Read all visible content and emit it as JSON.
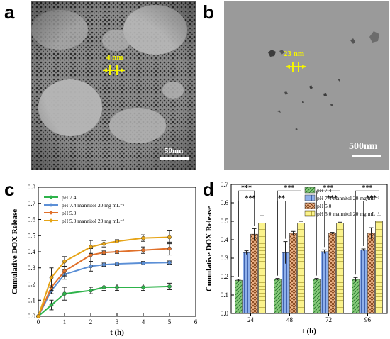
{
  "panels": {
    "a": {
      "letter": "a",
      "measure_label": "4 nm",
      "scale_bar_label": "50nm"
    },
    "b": {
      "letter": "b",
      "measure_label": "23 nm",
      "scale_bar_label": "500nm"
    },
    "c": {
      "letter": "c"
    },
    "d": {
      "letter": "d"
    }
  },
  "colors": {
    "ph74": "#2db34a",
    "ph74_mannitol": "#5b8fd6",
    "ph50": "#e0702a",
    "ph50_mannitol": "#e6a417",
    "bar_ph74": "#86c97a",
    "bar_ph74_mannitol": "#8fb0ea",
    "bar_ph50": "#f2b98f",
    "bar_ph50_mannitol": "#fbf38c",
    "annotation": "#f5f500"
  },
  "chart_data": [
    {
      "panel": "c",
      "type": "line",
      "xlabel": "t (h)",
      "ylabel": "Cumulative DOX Release",
      "xlim": [
        0,
        6
      ],
      "ylim": [
        0,
        0.8
      ],
      "xticks": [
        0,
        1,
        2,
        3,
        4,
        5,
        6
      ],
      "yticks": [
        0.0,
        0.1,
        0.2,
        0.3,
        0.4,
        0.5,
        0.6,
        0.7,
        0.8
      ],
      "x": [
        0,
        0.5,
        1,
        2,
        2.5,
        3,
        4,
        5
      ],
      "legend_position": "top-left",
      "series": [
        {
          "name": "pH 7.4",
          "color_key": "ph74",
          "values": [
            0,
            0.07,
            0.14,
            0.16,
            0.18,
            0.18,
            0.18,
            0.185
          ],
          "errors": [
            0,
            0.03,
            0.04,
            0.02,
            0.02,
            0.02,
            0.02,
            0.02
          ]
        },
        {
          "name": "pH 7.4 mannitol 20 mg mL⁻¹",
          "color_key": "ph74_mannitol",
          "values": [
            0,
            0.16,
            0.26,
            0.31,
            0.32,
            0.325,
            0.33,
            0.333
          ],
          "errors": [
            0,
            0.02,
            0.03,
            0.03,
            0.01,
            0.01,
            0.01,
            0.01
          ]
        },
        {
          "name": "pH 5.0",
          "color_key": "ph50",
          "values": [
            0,
            0.18,
            0.28,
            0.38,
            0.395,
            0.4,
            0.41,
            0.42
          ],
          "errors": [
            0,
            0.02,
            0.03,
            0.04,
            0.01,
            0.01,
            0.02,
            0.04
          ]
        },
        {
          "name": "pH 5.0 mannitol 20 mg mL⁻¹",
          "color_key": "ph50_mannitol",
          "values": [
            0,
            0.24,
            0.34,
            0.43,
            0.45,
            0.465,
            0.485,
            0.49
          ],
          "errors": [
            0,
            0.06,
            0.03,
            0.04,
            0.02,
            0.01,
            0.02,
            0.04
          ]
        }
      ]
    },
    {
      "panel": "d",
      "type": "bar",
      "xlabel": "t (h)",
      "ylabel": "Cumulative DOX Release",
      "ylim": [
        0,
        0.7
      ],
      "yticks": [
        0.0,
        0.1,
        0.2,
        0.3,
        0.4,
        0.5,
        0.6,
        0.7
      ],
      "categories": [
        "24",
        "48",
        "72",
        "96"
      ],
      "legend_position": "top-right",
      "series": [
        {
          "name": "pH 7.4",
          "color_key": "bar_ph74",
          "pattern": "diagonal",
          "values": [
            0.18,
            0.185,
            0.185,
            0.185
          ],
          "errors": [
            0.005,
            0.005,
            0.005,
            0.01
          ]
        },
        {
          "name": "pH 7.4 mannitol 20 mg mL⁻¹",
          "color_key": "bar_ph74_mannitol",
          "pattern": "vertical",
          "values": [
            0.33,
            0.33,
            0.335,
            0.345
          ],
          "errors": [
            0.01,
            0.06,
            0.01,
            0.005
          ]
        },
        {
          "name": "pH 5.0",
          "color_key": "bar_ph50",
          "pattern": "crosshatch",
          "values": [
            0.43,
            0.435,
            0.435,
            0.435
          ],
          "errors": [
            0.03,
            0.01,
            0.005,
            0.03
          ]
        },
        {
          "name": "pH 5.0 mannitol 20 mg mL⁻¹",
          "color_key": "bar_ph50_mannitol",
          "pattern": "grid",
          "values": [
            0.49,
            0.49,
            0.49,
            0.5
          ],
          "errors": [
            0.04,
            0.01,
            0.005,
            0.03
          ]
        }
      ],
      "significance": [
        {
          "category": "24",
          "label": "***",
          "from_series": 0,
          "to_series": 2,
          "level": "upper"
        },
        {
          "category": "24",
          "label": "***",
          "from_series": 0,
          "to_series": 3,
          "level": "lower"
        },
        {
          "category": "48",
          "label": "***",
          "from_series": 0,
          "to_series": 3,
          "level": "upper"
        },
        {
          "category": "48",
          "label": "**",
          "from_series": 0,
          "to_series": 1,
          "level": "lower"
        },
        {
          "category": "72",
          "label": "***",
          "from_series": 0,
          "to_series": 3,
          "level": "upper"
        },
        {
          "category": "72",
          "label": "***",
          "from_series": 1,
          "to_series": 3,
          "level": "lower"
        },
        {
          "category": "96",
          "label": "***",
          "from_series": 0,
          "to_series": 3,
          "level": "upper"
        },
        {
          "category": "96",
          "label": "***",
          "from_series": 1,
          "to_series": 3,
          "level": "lower"
        }
      ]
    }
  ]
}
